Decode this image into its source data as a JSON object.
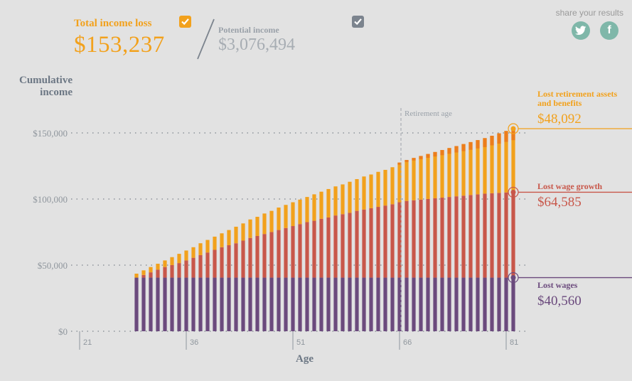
{
  "header": {
    "loss_label": "Total income loss",
    "loss_value": "$153,237",
    "potential_label": "Potential income",
    "potential_value": "$3,076,494",
    "share_label": "share your results"
  },
  "social": {
    "twitter_icon": "twitter-icon",
    "facebook_icon": "facebook-icon",
    "fb_glyph": "f"
  },
  "colors": {
    "background": "#e2e2e2",
    "lost_wages": "#6b4a7d",
    "lost_wage_growth": "#c8574a",
    "lost_retirement": "#f2a11c",
    "lost_retirement_top": "#ec7d1c",
    "potential": "#7c848e",
    "social": "#7fb7a9"
  },
  "chart_data": {
    "type": "bar",
    "stacked": true,
    "ylabel": "Cumulative income",
    "xlabel": "Age",
    "ylim": [
      0,
      150000
    ],
    "yticks": [
      "$0",
      "$50,000",
      "$100,000",
      "$150,000"
    ],
    "xticks": [
      "21",
      "36",
      "51",
      "66",
      "81"
    ],
    "x_range": [
      21,
      82
    ],
    "grid": true,
    "reference_line": {
      "x": 66,
      "label": "Retirement age"
    },
    "x": [
      29,
      30,
      31,
      32,
      33,
      34,
      35,
      36,
      37,
      38,
      39,
      40,
      41,
      42,
      43,
      44,
      45,
      46,
      47,
      48,
      49,
      50,
      51,
      52,
      53,
      54,
      55,
      56,
      57,
      58,
      59,
      60,
      61,
      62,
      63,
      64,
      65,
      66,
      67,
      68,
      69,
      70,
      71,
      72,
      73,
      74,
      75,
      76,
      77,
      78,
      79,
      80,
      81,
      82
    ],
    "series": [
      {
        "name": "Lost wages",
        "values": [
          40560,
          40560,
          40560,
          40560,
          40560,
          40560,
          40560,
          40560,
          40560,
          40560,
          40560,
          40560,
          40560,
          40560,
          40560,
          40560,
          40560,
          40560,
          40560,
          40560,
          40560,
          40560,
          40560,
          40560,
          40560,
          40560,
          40560,
          40560,
          40560,
          40560,
          40560,
          40560,
          40560,
          40560,
          40560,
          40560,
          40560,
          40560,
          40560,
          40560,
          40560,
          40560,
          40560,
          40560,
          40560,
          40560,
          40560,
          40560,
          40560,
          40560,
          40560,
          40560,
          40560,
          40560
        ]
      },
      {
        "name": "Lost wage growth",
        "values": [
          0,
          2000,
          4000,
          6000,
          8000,
          9500,
          11000,
          13000,
          15000,
          17000,
          19000,
          21000,
          23000,
          24500,
          26000,
          28000,
          30000,
          31500,
          33000,
          34500,
          36000,
          37500,
          39000,
          40500,
          42000,
          43000,
          44500,
          45500,
          47000,
          48000,
          49000,
          50500,
          51500,
          52500,
          53500,
          54500,
          55500,
          57000,
          58000,
          58500,
          59000,
          59500,
          60000,
          60500,
          61000,
          61500,
          62000,
          62500,
          63000,
          63500,
          63800,
          64100,
          64400,
          64585
        ]
      },
      {
        "name": "Lost retirement assets and benefits",
        "values": [
          3000,
          3500,
          4000,
          4500,
          5000,
          6000,
          7000,
          7500,
          8000,
          9000,
          9500,
          10000,
          10500,
          11500,
          12500,
          13000,
          14000,
          14500,
          15500,
          16000,
          17000,
          17500,
          18000,
          18500,
          19000,
          20000,
          20500,
          21500,
          22000,
          22500,
          23500,
          24000,
          25000,
          25500,
          26500,
          27000,
          28000,
          30000,
          31000,
          32000,
          33000,
          34000,
          35000,
          36000,
          37000,
          38000,
          39000,
          40000,
          41000,
          42000,
          43500,
          45000,
          46500,
          48092
        ]
      }
    ],
    "annotations": [
      {
        "label_lines": [
          "Lost retirement assets",
          "and benefits"
        ],
        "value": "$48,092"
      },
      {
        "label_lines": [
          "Lost wage growth"
        ],
        "value": "$64,585"
      },
      {
        "label_lines": [
          "Lost wages"
        ],
        "value": "$40,560"
      }
    ]
  }
}
